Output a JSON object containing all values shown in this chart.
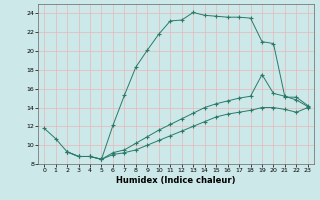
{
  "title": "",
  "xlabel": "Humidex (Indice chaleur)",
  "bg_color": "#cce8e8",
  "line_color": "#2a7a6a",
  "xlim": [
    -0.5,
    23.5
  ],
  "ylim": [
    8,
    25
  ],
  "xticks": [
    0,
    1,
    2,
    3,
    4,
    5,
    6,
    7,
    8,
    9,
    10,
    11,
    12,
    13,
    14,
    15,
    16,
    17,
    18,
    19,
    20,
    21,
    22,
    23
  ],
  "yticks": [
    8,
    10,
    12,
    14,
    16,
    18,
    20,
    22,
    24
  ],
  "line1_x": [
    0,
    1,
    2,
    3,
    4,
    5,
    6,
    7,
    8,
    9,
    10,
    11,
    12,
    13,
    14,
    15,
    16,
    17,
    18,
    19,
    20,
    21,
    22,
    23
  ],
  "line1_y": [
    11.8,
    10.7,
    9.3,
    8.8,
    8.8,
    8.5,
    12.1,
    15.3,
    18.3,
    20.1,
    21.8,
    23.2,
    23.3,
    24.1,
    23.8,
    23.7,
    23.6,
    23.6,
    23.5,
    21.0,
    20.8,
    15.1,
    15.1,
    14.2
  ],
  "line2_x": [
    2,
    3,
    4,
    5,
    6,
    7,
    8,
    9,
    10,
    11,
    12,
    13,
    14,
    15,
    16,
    17,
    18,
    19,
    20,
    21,
    22,
    23
  ],
  "line2_y": [
    9.3,
    8.8,
    8.8,
    8.5,
    9.2,
    9.5,
    10.2,
    10.9,
    11.6,
    12.2,
    12.8,
    13.4,
    14.0,
    14.4,
    14.7,
    15.0,
    15.2,
    17.5,
    15.5,
    15.2,
    14.8,
    14.1
  ],
  "line3_x": [
    2,
    3,
    4,
    5,
    6,
    7,
    8,
    9,
    10,
    11,
    12,
    13,
    14,
    15,
    16,
    17,
    18,
    19,
    20,
    21,
    22,
    23
  ],
  "line3_y": [
    9.3,
    8.8,
    8.8,
    8.5,
    9.0,
    9.2,
    9.5,
    10.0,
    10.5,
    11.0,
    11.5,
    12.0,
    12.5,
    13.0,
    13.3,
    13.5,
    13.7,
    14.0,
    14.0,
    13.8,
    13.5,
    14.0
  ]
}
